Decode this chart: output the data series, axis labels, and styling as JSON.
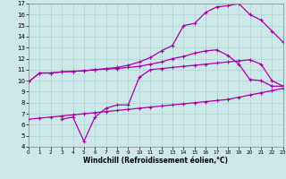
{
  "xlabel": "Windchill (Refroidissement éolien,°C)",
  "xlim": [
    0,
    23
  ],
  "ylim": [
    4,
    17
  ],
  "yticks": [
    4,
    5,
    6,
    7,
    8,
    9,
    10,
    11,
    12,
    13,
    14,
    15,
    16,
    17
  ],
  "xticks": [
    0,
    1,
    2,
    3,
    4,
    5,
    6,
    7,
    8,
    9,
    10,
    11,
    12,
    13,
    14,
    15,
    16,
    17,
    18,
    19,
    20,
    21,
    22,
    23
  ],
  "bg_color": "#cce8e8",
  "grid_color": "#b0d0d0",
  "line_color": "#aa00aa",
  "curve1_x": [
    0,
    1,
    2,
    3,
    4,
    5,
    6,
    7,
    8,
    9,
    10,
    11,
    12,
    13,
    14,
    15,
    16,
    17,
    18,
    19,
    20,
    21,
    22,
    23
  ],
  "curve1_y": [
    9.9,
    10.7,
    10.7,
    10.8,
    10.85,
    10.9,
    11.0,
    11.05,
    11.1,
    11.2,
    11.3,
    11.5,
    11.7,
    12.0,
    12.2,
    12.5,
    12.7,
    12.8,
    12.3,
    11.5,
    10.1,
    10.0,
    9.5,
    9.5
  ],
  "curve2_x": [
    0,
    1,
    2,
    3,
    4,
    5,
    6,
    7,
    8,
    9,
    10,
    11,
    12,
    13,
    14,
    15,
    16,
    17,
    18,
    19,
    20,
    21,
    22,
    23
  ],
  "curve2_y": [
    9.9,
    10.7,
    10.7,
    10.8,
    10.85,
    10.9,
    11.0,
    11.1,
    11.2,
    11.4,
    11.7,
    12.1,
    12.7,
    13.2,
    15.0,
    15.2,
    16.2,
    16.7,
    16.8,
    17.0,
    16.0,
    15.5,
    14.5,
    13.5
  ],
  "curve3_x": [
    3,
    4,
    5,
    6,
    7,
    8,
    9,
    10,
    11,
    12,
    13,
    14,
    15,
    16,
    17,
    18,
    19,
    20,
    21,
    22,
    23
  ],
  "curve3_y": [
    6.5,
    6.7,
    4.5,
    6.7,
    7.5,
    7.8,
    7.8,
    10.3,
    11.0,
    11.1,
    11.2,
    11.3,
    11.4,
    11.5,
    11.6,
    11.7,
    11.8,
    11.9,
    11.5,
    10.0,
    9.5
  ],
  "curve4_x": [
    0,
    1,
    2,
    3,
    4,
    5,
    6,
    7,
    8,
    9,
    10,
    11,
    12,
    13,
    14,
    15,
    16,
    17,
    18,
    19,
    20,
    21,
    22,
    23
  ],
  "curve4_y": [
    6.5,
    6.6,
    6.7,
    6.8,
    6.9,
    7.0,
    7.1,
    7.2,
    7.3,
    7.4,
    7.5,
    7.6,
    7.7,
    7.8,
    7.9,
    8.0,
    8.1,
    8.2,
    8.3,
    8.5,
    8.7,
    8.9,
    9.1,
    9.3
  ]
}
